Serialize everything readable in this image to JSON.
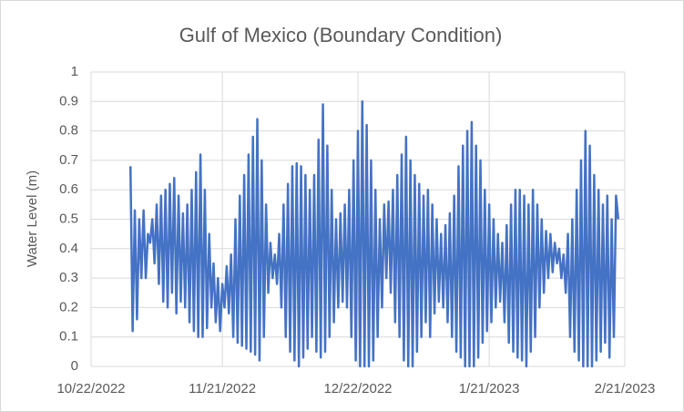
{
  "chart_data": {
    "type": "line",
    "title": "Gulf of Mexico (Boundary Condition)",
    "y_label": "Water Level (m)",
    "xlim": [
      44856,
      44978
    ],
    "xticks": [
      {
        "value": 44856,
        "label": "10/22/2022"
      },
      {
        "value": 44886,
        "label": "11/21/2022"
      },
      {
        "value": 44917,
        "label": "12/22/2022"
      },
      {
        "value": 44947,
        "label": "1/21/2023"
      },
      {
        "value": 44978,
        "label": "2/21/2023"
      }
    ],
    "ylim": [
      0,
      1
    ],
    "yticks": [
      0,
      0.1,
      0.2,
      0.3,
      0.4,
      0.5,
      0.6,
      0.7,
      0.8,
      0.9,
      1
    ],
    "grid": true,
    "x": [
      44865,
      44865.5,
      44866,
      44866.5,
      44867,
      44867.5,
      44868,
      44868.5,
      44869,
      44869.5,
      44870,
      44870.5,
      44871,
      44871.5,
      44872,
      44872.5,
      44873,
      44873.5,
      44874,
      44874.5,
      44875,
      44875.5,
      44876,
      44876.5,
      44877,
      44877.5,
      44878,
      44878.5,
      44879,
      44879.5,
      44880,
      44880.5,
      44881,
      44881.5,
      44882,
      44882.5,
      44883,
      44883.5,
      44884,
      44884.5,
      44885,
      44885.5,
      44886,
      44886.5,
      44887,
      44887.5,
      44888,
      44888.5,
      44889,
      44889.5,
      44890,
      44890.5,
      44891,
      44891.5,
      44892,
      44892.5,
      44893,
      44893.5,
      44894,
      44894.5,
      44895,
      44895.5,
      44896,
      44896.5,
      44897,
      44897.5,
      44898,
      44898.5,
      44899,
      44899.5,
      44900,
      44900.5,
      44901,
      44901.5,
      44902,
      44902.5,
      44903,
      44903.5,
      44904,
      44904.5,
      44905,
      44905.5,
      44906,
      44906.5,
      44907,
      44907.5,
      44908,
      44908.5,
      44909,
      44909.5,
      44910,
      44910.5,
      44911,
      44911.5,
      44912,
      44912.5,
      44913,
      44913.5,
      44914,
      44914.5,
      44915,
      44915.5,
      44916,
      44916.5,
      44917,
      44917.5,
      44918,
      44918.5,
      44919,
      44919.5,
      44920,
      44920.5,
      44921,
      44921.5,
      44922,
      44922.5,
      44923,
      44923.5,
      44924,
      44924.5,
      44925,
      44925.5,
      44926,
      44926.5,
      44927,
      44927.5,
      44928,
      44928.5,
      44929,
      44929.5,
      44930,
      44930.5,
      44931,
      44931.5,
      44932,
      44932.5,
      44933,
      44933.5,
      44934,
      44934.5,
      44935,
      44935.5,
      44936,
      44936.5,
      44937,
      44937.5,
      44938,
      44938.5,
      44939,
      44939.5,
      44940,
      44940.5,
      44941,
      44941.5,
      44942,
      44942.5,
      44943,
      44943.5,
      44944,
      44944.5,
      44945,
      44945.5,
      44946,
      44946.5,
      44947,
      44947.5,
      44948,
      44948.5,
      44949,
      44949.5,
      44950,
      44950.5,
      44951,
      44951.5,
      44952,
      44952.5,
      44953,
      44953.5,
      44954,
      44954.5,
      44955,
      44955.5,
      44956,
      44956.5,
      44957,
      44957.5,
      44958,
      44958.5,
      44959,
      44959.5,
      44960,
      44960.5,
      44961,
      44961.5,
      44962,
      44962.5,
      44963,
      44963.5,
      44964,
      44964.5,
      44965,
      44965.5,
      44966,
      44966.5,
      44967,
      44967.5,
      44968,
      44968.5,
      44969,
      44969.5,
      44970,
      44970.5,
      44971,
      44971.5,
      44972,
      44972.5,
      44973,
      44973.5,
      44974,
      44974.5,
      44975,
      44975.5,
      44976,
      44976.5
    ],
    "series": [
      {
        "name": "Water Level",
        "color": "#4472c4",
        "values": [
          0.68,
          0.12,
          0.53,
          0.16,
          0.5,
          0.3,
          0.53,
          0.3,
          0.45,
          0.42,
          0.5,
          0.35,
          0.55,
          0.28,
          0.58,
          0.22,
          0.6,
          0.2,
          0.62,
          0.25,
          0.64,
          0.18,
          0.58,
          0.22,
          0.52,
          0.2,
          0.55,
          0.15,
          0.6,
          0.12,
          0.66,
          0.1,
          0.72,
          0.1,
          0.6,
          0.13,
          0.45,
          0.2,
          0.35,
          0.15,
          0.3,
          0.12,
          0.28,
          0.2,
          0.34,
          0.18,
          0.38,
          0.1,
          0.5,
          0.08,
          0.58,
          0.07,
          0.65,
          0.06,
          0.72,
          0.05,
          0.78,
          0.04,
          0.84,
          0.02,
          0.7,
          0.1,
          0.55,
          0.25,
          0.42,
          0.3,
          0.38,
          0.28,
          0.45,
          0.2,
          0.55,
          0.1,
          0.62,
          0.05,
          0.68,
          0.02,
          0.69,
          0,
          0.68,
          0.03,
          0.65,
          0.06,
          0.6,
          0.1,
          0.65,
          0.05,
          0.77,
          0.03,
          0.89,
          0.05,
          0.75,
          0.1,
          0.6,
          0.15,
          0.5,
          0.2,
          0.52,
          0.22,
          0.55,
          0.2,
          0.6,
          0.1,
          0.7,
          0.02,
          0.8,
          0,
          0.9,
          0,
          0.82,
          0,
          0.7,
          0.02,
          0.6,
          0.1,
          0.5,
          0.2,
          0.55,
          0.3,
          0.56,
          0.25,
          0.6,
          0.15,
          0.65,
          0.1,
          0.72,
          0.02,
          0.78,
          0,
          0.7,
          0,
          0.65,
          0.05,
          0.62,
          0.1,
          0.58,
          0.15,
          0.6,
          0.1,
          0.55,
          0.18,
          0.5,
          0.22,
          0.45,
          0.2,
          0.48,
          0.15,
          0.52,
          0.1,
          0.58,
          0.05,
          0.68,
          0.03,
          0.75,
          0,
          0.8,
          0,
          0.83,
          0,
          0.75,
          0.03,
          0.7,
          0.08,
          0.6,
          0.12,
          0.55,
          0.15,
          0.5,
          0.2,
          0.45,
          0.22,
          0.42,
          0.15,
          0.48,
          0.08,
          0.55,
          0.05,
          0.6,
          0.03,
          0.6,
          0.02,
          0.58,
          0,
          0.55,
          0.05,
          0.6,
          0.1,
          0.55,
          0.2,
          0.5,
          0.25,
          0.46,
          0.3,
          0.45,
          0.32,
          0.42,
          0.35,
          0.4,
          0.3,
          0.38,
          0.25,
          0.45,
          0.1,
          0.5,
          0.05,
          0.6,
          0.02,
          0.7,
          0,
          0.8,
          0,
          0.75,
          0,
          0.65,
          0.02,
          0.6,
          0.05,
          0.55,
          0.08,
          0.58,
          0.03,
          0.5,
          0.1,
          0.58,
          0.5
        ]
      }
    ]
  }
}
